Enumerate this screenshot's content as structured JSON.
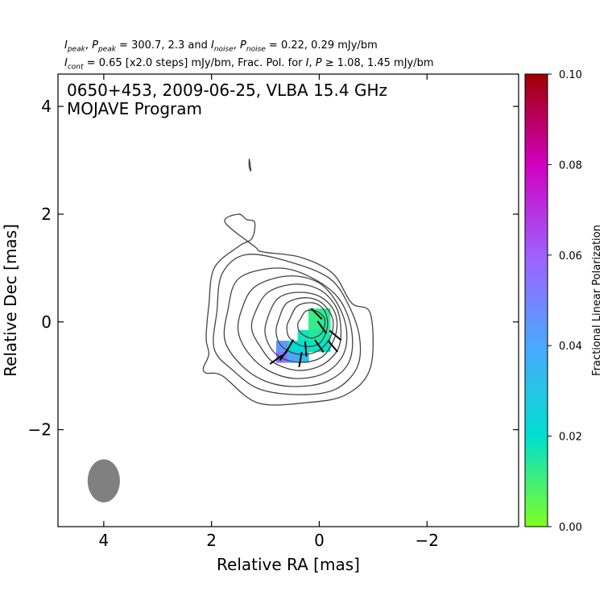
{
  "header": {
    "line1": {
      "I": "I",
      "peak": "peak",
      "P": "P",
      "ppeak": "peak",
      "eq1": " = 300.7, 2.3 and ",
      "noise1": "noise",
      "noise2": "noise",
      "eq2": " = 0.22, 0.29 mJy/bm"
    },
    "line2": {
      "I": "I",
      "cont": "cont",
      "text1": " = 0.65 [x2.0 steps] mJy/bm, Frac. Pol. for ",
      "text2": ", ",
      "text3": " ≥ 1.08, 1.45 mJy/bm",
      "I2": "I",
      "P2": "P"
    }
  },
  "chart_data": {
    "type": "contour",
    "title_line1": "0650+453, 2009-06-25, VLBA 15.4 GHz",
    "title_line2": "MOJAVE Program",
    "xlabel": "Relative RA [mas]",
    "ylabel": "Relative Dec [mas]",
    "xlim": [
      4.85,
      -3.7
    ],
    "ylim": [
      -3.8,
      4.6
    ],
    "x_ticks": [
      4,
      2,
      0,
      -2
    ],
    "x_tick_labels": [
      "4",
      "2",
      "0",
      "−2"
    ],
    "y_ticks": [
      4,
      2,
      0,
      -2
    ],
    "y_tick_labels": [
      "4",
      "2",
      "0",
      "−2"
    ],
    "source": "0650+453",
    "date": "2009-06-25",
    "frequency": "15.4 GHz",
    "peak_position": [
      0.05,
      0.0
    ],
    "contours": [
      {
        "level": 1,
        "points": [
          [
            2.05,
            0.3
          ],
          [
            1.95,
            1.0
          ],
          [
            1.5,
            1.4
          ],
          [
            1.25,
            1.55
          ],
          [
            1.2,
            1.85
          ],
          [
            1.35,
            1.9
          ],
          [
            1.5,
            2.0
          ],
          [
            1.75,
            1.85
          ],
          [
            1.2,
            1.4
          ],
          [
            1.05,
            1.3
          ],
          [
            0.35,
            1.2
          ],
          [
            -0.25,
            0.9
          ],
          [
            -0.6,
            0.35
          ],
          [
            -0.95,
            0.15
          ],
          [
            -0.95,
            -0.85
          ],
          [
            -0.5,
            -1.35
          ],
          [
            0.25,
            -1.5
          ],
          [
            1.15,
            -1.5
          ],
          [
            1.8,
            -1.0
          ],
          [
            2.1,
            -0.95
          ],
          [
            2.15,
            -0.85
          ],
          [
            2.05,
            -0.6
          ],
          [
            2.1,
            -0.3
          ]
        ]
      },
      {
        "level": 2,
        "points": [
          [
            1.9,
            0.2
          ],
          [
            1.8,
            0.9
          ],
          [
            1.35,
            1.25
          ],
          [
            0.5,
            1.1
          ],
          [
            -0.2,
            0.8
          ],
          [
            -0.55,
            0.3
          ],
          [
            -0.75,
            -0.3
          ],
          [
            -0.7,
            -0.85
          ],
          [
            -0.3,
            -1.25
          ],
          [
            0.35,
            -1.35
          ],
          [
            1.1,
            -1.25
          ],
          [
            1.6,
            -0.9
          ],
          [
            1.95,
            -0.5
          ]
        ]
      },
      {
        "level": 3,
        "points": [
          [
            1.7,
            0.2
          ],
          [
            1.5,
            0.8
          ],
          [
            0.8,
            1.0
          ],
          [
            0.2,
            0.85
          ],
          [
            -0.35,
            0.45
          ],
          [
            -0.6,
            -0.15
          ],
          [
            -0.55,
            -0.75
          ],
          [
            -0.15,
            -1.1
          ],
          [
            0.45,
            -1.2
          ],
          [
            1.0,
            -1.1
          ],
          [
            1.45,
            -0.8
          ],
          [
            1.75,
            -0.35
          ]
        ]
      },
      {
        "level": 4,
        "points": [
          [
            1.45,
            0.2
          ],
          [
            1.2,
            0.65
          ],
          [
            0.6,
            0.85
          ],
          [
            0.05,
            0.75
          ],
          [
            -0.3,
            0.4
          ],
          [
            -0.5,
            -0.1
          ],
          [
            -0.45,
            -0.6
          ],
          [
            -0.1,
            -0.95
          ],
          [
            0.45,
            -1.05
          ],
          [
            0.95,
            -0.9
          ],
          [
            1.3,
            -0.6
          ],
          [
            1.5,
            -0.2
          ]
        ]
      },
      {
        "level": 5,
        "points": [
          [
            1.2,
            0.15
          ],
          [
            0.95,
            0.55
          ],
          [
            0.45,
            0.7
          ],
          [
            0.0,
            0.6
          ],
          [
            -0.3,
            0.3
          ],
          [
            -0.4,
            -0.1
          ],
          [
            -0.35,
            -0.5
          ],
          [
            -0.05,
            -0.8
          ],
          [
            0.4,
            -0.9
          ],
          [
            0.85,
            -0.75
          ],
          [
            1.1,
            -0.45
          ],
          [
            1.25,
            -0.15
          ]
        ]
      },
      {
        "level": 6,
        "points": [
          [
            0.95,
            0.1
          ],
          [
            0.75,
            0.45
          ],
          [
            0.35,
            0.55
          ],
          [
            -0.05,
            0.45
          ],
          [
            -0.3,
            0.15
          ],
          [
            -0.3,
            -0.25
          ],
          [
            -0.05,
            -0.65
          ],
          [
            0.4,
            -0.75
          ],
          [
            0.8,
            -0.6
          ],
          [
            1.0,
            -0.25
          ]
        ]
      },
      {
        "level": 7,
        "points": [
          [
            0.75,
            0.05
          ],
          [
            0.6,
            0.35
          ],
          [
            0.25,
            0.45
          ],
          [
            -0.05,
            0.35
          ],
          [
            -0.25,
            0.05
          ],
          [
            -0.2,
            -0.3
          ],
          [
            0.05,
            -0.55
          ],
          [
            0.4,
            -0.6
          ],
          [
            0.7,
            -0.45
          ],
          [
            0.8,
            -0.2
          ]
        ]
      },
      {
        "level": 8,
        "points": [
          [
            0.55,
            0.05
          ],
          [
            0.4,
            0.3
          ],
          [
            0.1,
            0.35
          ],
          [
            -0.1,
            0.2
          ],
          [
            -0.15,
            -0.1
          ],
          [
            0.0,
            -0.4
          ],
          [
            0.3,
            -0.45
          ],
          [
            0.55,
            -0.3
          ],
          [
            0.6,
            -0.1
          ]
        ]
      },
      {
        "level": 9,
        "points": [
          [
            0.35,
            0.05
          ],
          [
            0.25,
            0.2
          ],
          [
            0.05,
            0.2
          ],
          [
            -0.1,
            0.05
          ],
          [
            -0.05,
            -0.2
          ],
          [
            0.15,
            -0.3
          ],
          [
            0.35,
            -0.2
          ],
          [
            0.4,
            -0.05
          ]
        ]
      },
      {
        "level": 10,
        "points": [
          [
            1.3,
            3.02
          ],
          [
            1.28,
            2.9
          ],
          [
            1.27,
            2.8
          ],
          [
            1.3,
            2.88
          ]
        ]
      }
    ],
    "polarization_pixels": [
      {
        "x": 0.1,
        "y": -0.05,
        "frac": 0.012
      },
      {
        "x": -0.1,
        "y": -0.05,
        "frac": 0.014
      },
      {
        "x": 0.1,
        "y": 0.15,
        "frac": 0.011
      },
      {
        "x": -0.1,
        "y": 0.15,
        "frac": 0.013
      },
      {
        "x": 0.1,
        "y": -0.25,
        "frac": 0.015
      },
      {
        "x": -0.1,
        "y": -0.25,
        "frac": 0.016
      },
      {
        "x": -0.1,
        "y": -0.45,
        "frac": 0.019
      },
      {
        "x": 0.1,
        "y": -0.45,
        "frac": 0.018
      },
      {
        "x": 0.3,
        "y": -0.25,
        "frac": 0.017
      },
      {
        "x": 0.3,
        "y": -0.45,
        "frac": 0.02
      },
      {
        "x": 0.5,
        "y": -0.45,
        "frac": 0.022
      },
      {
        "x": 0.3,
        "y": -0.65,
        "frac": 0.032
      },
      {
        "x": 0.5,
        "y": -0.65,
        "frac": 0.04
      },
      {
        "x": 0.7,
        "y": -0.65,
        "frac": 0.055
      },
      {
        "x": 0.7,
        "y": -0.45,
        "frac": 0.045
      }
    ],
    "evpa_sticks": [
      {
        "x": 0.05,
        "y": 0.15,
        "angle": 135
      },
      {
        "x": -0.05,
        "y": -0.1,
        "angle": 125
      },
      {
        "x": 0.0,
        "y": -0.45,
        "angle": 125
      },
      {
        "x": -0.3,
        "y": -0.25,
        "angle": 140
      },
      {
        "x": -0.25,
        "y": -0.45,
        "angle": 130
      },
      {
        "x": 0.25,
        "y": -0.5,
        "angle": 95
      },
      {
        "x": 0.55,
        "y": -0.45,
        "angle": 60
      },
      {
        "x": 0.35,
        "y": -0.7,
        "angle": 80
      },
      {
        "x": 0.65,
        "y": -0.6,
        "angle": 55
      },
      {
        "x": 0.8,
        "y": -0.7,
        "angle": 35
      }
    ],
    "beam": {
      "x": 4.0,
      "y": -2.95,
      "major": 0.8,
      "minor": 0.6,
      "angle": 0,
      "color": "#808080"
    },
    "colorbar": {
      "label": "Fractional Linear Polarization",
      "range": [
        0.0,
        0.1
      ],
      "ticks": [
        0.0,
        0.02,
        0.04,
        0.06,
        0.08,
        0.1
      ],
      "tick_labels": [
        "0.00",
        "0.02",
        "0.04",
        "0.06",
        "0.08",
        "0.10"
      ],
      "colors": [
        "#80ff20",
        "#00e0d0",
        "#4aa8ff",
        "#a060ff",
        "#d000c0",
        "#a00000"
      ]
    },
    "contour_color": "#444444",
    "evpa_color": "#000000"
  }
}
